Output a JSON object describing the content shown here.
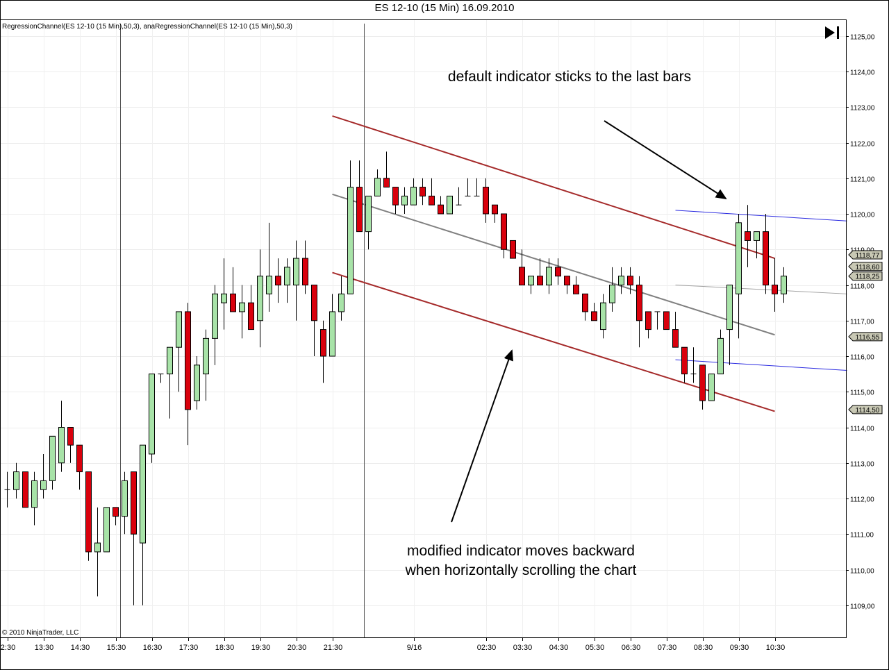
{
  "window": {
    "title": "ES 12-10 (15 Min)  16.09.2010"
  },
  "indicator_label": "RegressionChannel(ES 12-10 (15 Min),50,3),  anaRegressionChannel(ES 12-10 (15 Min),50,3)",
  "copyright": "© 2010 NinjaTrader, LLC",
  "annotations": {
    "top": "default indicator sticks to the last bars",
    "bottom_line1": "modified indicator moves backward",
    "bottom_line2": "when horizontally scrolling the chart"
  },
  "icons": {
    "scroll_to_end": "skip-to-end-icon"
  },
  "colors": {
    "up_candle": "#a8e3a8",
    "down_candle": "#d9000c",
    "default_channel": "#a52a2a",
    "default_midline": "#808080",
    "modified_channel": "#2a2ae0",
    "modified_midline": "#a0a0a0",
    "price_marker": "#c8c8b4"
  },
  "chart_data": {
    "type": "candlestick",
    "instrument": "ES 12-10",
    "interval": "15 Min",
    "ylim": [
      1108.2,
      1125.3
    ],
    "y_ticks": [
      "1109,00",
      "1110,00",
      "1111,00",
      "1112,00",
      "1113,00",
      "1114,00",
      "1115,00",
      "1116,00",
      "1117,00",
      "1118,00",
      "1119,00",
      "1120,00",
      "1121,00",
      "1122,00",
      "1123,00",
      "1124,00",
      "1125,00"
    ],
    "x_tick_labels": [
      {
        "bar": 0,
        "label": "2:30"
      },
      {
        "bar": 4,
        "label": "13:30"
      },
      {
        "bar": 8,
        "label": "14:30"
      },
      {
        "bar": 12,
        "label": "15:30"
      },
      {
        "bar": 16,
        "label": "16:30"
      },
      {
        "bar": 20,
        "label": "17:30"
      },
      {
        "bar": 24,
        "label": "18:30"
      },
      {
        "bar": 28,
        "label": "19:30"
      },
      {
        "bar": 32,
        "label": "20:30"
      },
      {
        "bar": 36,
        "label": "21:30"
      },
      {
        "bar": 45,
        "label": "9/16"
      },
      {
        "bar": 53,
        "label": "02:30"
      },
      {
        "bar": 57,
        "label": "03:30"
      },
      {
        "bar": 61,
        "label": "04:30"
      },
      {
        "bar": 65,
        "label": "05:30"
      },
      {
        "bar": 69,
        "label": "06:30"
      },
      {
        "bar": 73,
        "label": "07:30"
      },
      {
        "bar": 77,
        "label": "08:30"
      },
      {
        "bar": 81,
        "label": "09:30"
      },
      {
        "bar": 85,
        "label": "10:30"
      }
    ],
    "session_breaks": [
      12.5,
      39.5
    ],
    "candles": [
      [
        1112.25,
        1112.75,
        1111.75,
        1112.25
      ],
      [
        1112.25,
        1113.0,
        1112.0,
        1112.75
      ],
      [
        1112.75,
        1112.75,
        1111.75,
        1111.75
      ],
      [
        1111.75,
        1112.75,
        1111.25,
        1112.5
      ],
      [
        1112.25,
        1113.25,
        1112.0,
        1112.5
      ],
      [
        1112.5,
        1113.75,
        1112.25,
        1113.75
      ],
      [
        1113.0,
        1114.75,
        1112.75,
        1114.0
      ],
      [
        1114.0,
        1114.0,
        1113.0,
        1113.5
      ],
      [
        1113.5,
        1113.5,
        1112.25,
        1112.75
      ],
      [
        1112.75,
        1112.75,
        1110.25,
        1110.5
      ],
      [
        1110.5,
        1111.75,
        1109.25,
        1110.75
      ],
      [
        1110.5,
        1111.75,
        1110.5,
        1111.75
      ],
      [
        1111.75,
        1111.75,
        1111.25,
        1111.5
      ],
      [
        1111.5,
        1112.75,
        1111.0,
        1112.5
      ],
      [
        1112.75,
        1112.75,
        1109.0,
        1111.0
      ],
      [
        1110.75,
        1113.5,
        1109.0,
        1113.5
      ],
      [
        1113.25,
        1115.5,
        1113.0,
        1115.5
      ],
      [
        1115.5,
        1115.5,
        1115.25,
        1115.5
      ],
      [
        1115.5,
        1116.25,
        1114.25,
        1116.25
      ],
      [
        1116.25,
        1117.25,
        1115.0,
        1117.25
      ],
      [
        1117.25,
        1117.5,
        1113.5,
        1114.5
      ],
      [
        1114.75,
        1116.0,
        1114.5,
        1115.75
      ],
      [
        1115.5,
        1116.75,
        1114.75,
        1116.5
      ],
      [
        1116.5,
        1118.0,
        1115.75,
        1117.75
      ],
      [
        1117.5,
        1118.75,
        1116.75,
        1117.75
      ],
      [
        1117.75,
        1118.5,
        1117.25,
        1117.25
      ],
      [
        1117.25,
        1118.0,
        1116.5,
        1117.5
      ],
      [
        1117.5,
        1118.0,
        1116.75,
        1116.75
      ],
      [
        1117.0,
        1119.0,
        1116.25,
        1118.25
      ],
      [
        1117.75,
        1119.75,
        1117.25,
        1118.25
      ],
      [
        1118.25,
        1118.75,
        1117.5,
        1118.0
      ],
      [
        1118.0,
        1118.75,
        1117.5,
        1118.5
      ],
      [
        1118.0,
        1119.25,
        1117.0,
        1118.75
      ],
      [
        1118.75,
        1119.25,
        1117.75,
        1118.0
      ],
      [
        1118.0,
        1118.0,
        1116.0,
        1117.0
      ],
      [
        1116.75,
        1117.0,
        1115.25,
        1116.0
      ],
      [
        1116.0,
        1117.75,
        1116.0,
        1117.25
      ],
      [
        1117.25,
        1118.25,
        1117.0,
        1117.75
      ],
      [
        1117.75,
        1121.5,
        1117.75,
        1120.75
      ],
      [
        1120.75,
        1121.5,
        1119.5,
        1119.5
      ],
      [
        1119.5,
        1120.5,
        1119.0,
        1120.5
      ],
      [
        1120.5,
        1121.25,
        1120.5,
        1121.0
      ],
      [
        1121.0,
        1121.75,
        1120.75,
        1120.75
      ],
      [
        1120.75,
        1120.75,
        1120.0,
        1120.25
      ],
      [
        1120.25,
        1120.75,
        1120.0,
        1120.5
      ],
      [
        1120.25,
        1121.0,
        1120.25,
        1120.75
      ],
      [
        1120.75,
        1121.0,
        1120.25,
        1120.5
      ],
      [
        1120.5,
        1121.0,
        1120.25,
        1120.25
      ],
      [
        1120.25,
        1120.5,
        1120.0,
        1120.0
      ],
      [
        1120.0,
        1120.5,
        1120.0,
        1120.5
      ],
      [
        1120.25,
        1120.75,
        1120.25,
        1120.25
      ],
      [
        1120.5,
        1121.0,
        1120.5,
        1120.5
      ],
      [
        1120.5,
        1121.0,
        1120.5,
        1120.5
      ],
      [
        1120.75,
        1121.0,
        1119.75,
        1120.0
      ],
      [
        1120.25,
        1120.25,
        1119.75,
        1120.0
      ],
      [
        1120.0,
        1120.0,
        1118.75,
        1119.0
      ],
      [
        1119.25,
        1119.25,
        1118.75,
        1118.75
      ],
      [
        1118.5,
        1119.0,
        1118.0,
        1118.0
      ],
      [
        1118.0,
        1118.25,
        1117.75,
        1118.25
      ],
      [
        1118.25,
        1118.75,
        1118.0,
        1118.0
      ],
      [
        1118.0,
        1118.75,
        1117.75,
        1118.5
      ],
      [
        1118.5,
        1118.75,
        1118.0,
        1118.25
      ],
      [
        1118.25,
        1118.25,
        1117.75,
        1118.0
      ],
      [
        1118.0,
        1118.25,
        1117.75,
        1117.75
      ],
      [
        1117.75,
        1117.75,
        1117.0,
        1117.25
      ],
      [
        1117.25,
        1117.5,
        1117.0,
        1117.0
      ],
      [
        1116.75,
        1117.75,
        1116.5,
        1117.5
      ],
      [
        1117.5,
        1118.5,
        1117.25,
        1118.0
      ],
      [
        1118.0,
        1118.5,
        1117.75,
        1118.25
      ],
      [
        1118.25,
        1118.5,
        1117.75,
        1118.0
      ],
      [
        1118.0,
        1118.25,
        1116.25,
        1117.0
      ],
      [
        1117.25,
        1117.25,
        1116.5,
        1116.75
      ],
      [
        1117.25,
        1117.25,
        1116.75,
        1117.25
      ],
      [
        1117.25,
        1117.25,
        1116.75,
        1116.75
      ],
      [
        1116.75,
        1117.25,
        1116.25,
        1116.25
      ],
      [
        1116.25,
        1116.25,
        1115.25,
        1115.5
      ],
      [
        1115.5,
        1116.25,
        1115.25,
        1115.5
      ],
      [
        1115.75,
        1115.75,
        1114.5,
        1114.75
      ],
      [
        1114.75,
        1115.5,
        1114.75,
        1115.5
      ],
      [
        1115.5,
        1116.75,
        1115.5,
        1116.5
      ],
      [
        1116.75,
        1118.0,
        1115.75,
        1118.0
      ],
      [
        1117.75,
        1120.0,
        1116.5,
        1119.75
      ],
      [
        1119.5,
        1120.25,
        1118.5,
        1119.25
      ],
      [
        1119.25,
        1119.5,
        1118.75,
        1119.5
      ],
      [
        1119.5,
        1120.0,
        1117.75,
        1118.0
      ],
      [
        1118.0,
        1118.75,
        1117.25,
        1117.75
      ],
      [
        1117.75,
        1118.5,
        1117.5,
        1118.25
      ]
    ],
    "overlays": {
      "default_regression_channel": {
        "from_bar": 36,
        "to_bar": 85,
        "mid": [
          1120.55,
          1116.6
        ],
        "upper": [
          1122.75,
          1118.75
        ],
        "lower": [
          1118.35,
          1114.45
        ]
      },
      "modified_regression_channel": {
        "from_bar": 74,
        "to_bar": 93,
        "mid": [
          1118.0,
          1117.75
        ],
        "upper": [
          1120.1,
          1119.8
        ],
        "lower": [
          1115.9,
          1115.6
        ]
      }
    },
    "price_markers": [
      "1118,77",
      "1118,60",
      "1118,25",
      "1116,55",
      "1114,50"
    ]
  }
}
